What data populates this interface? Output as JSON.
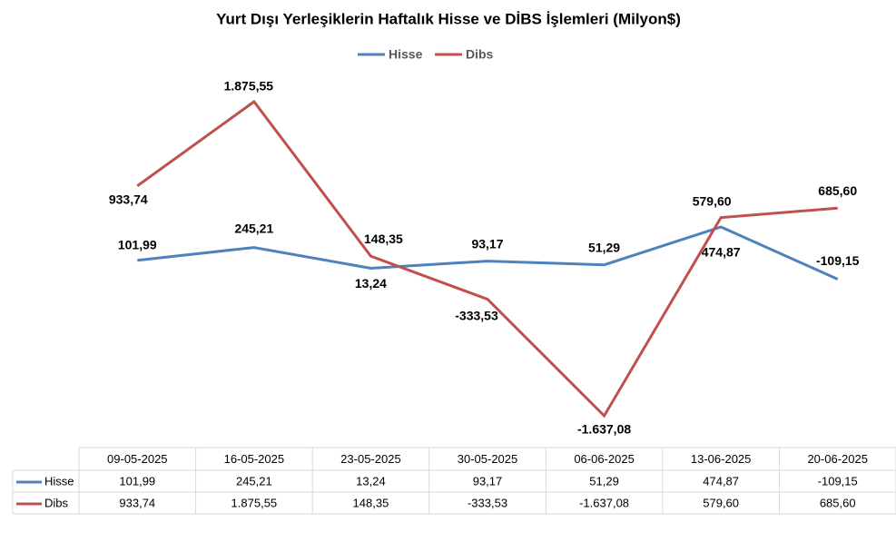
{
  "chart_data": {
    "type": "line",
    "title": "Yurt Dışı Yerleşiklerin Haftalık Hisse ve DİBS İşlemleri (Milyon$)",
    "categories": [
      "09-05-2025",
      "16-05-2025",
      "23-05-2025",
      "30-05-2025",
      "06-06-2025",
      "13-06-2025",
      "20-06-2025"
    ],
    "series": [
      {
        "name": "Hisse",
        "color": "#4f81bd",
        "values": [
          101.99,
          245.21,
          13.24,
          93.17,
          51.29,
          474.87,
          -109.15
        ],
        "value_labels": [
          "101,99",
          "245,21",
          "13,24",
          "93,17",
          "51,29",
          "474,87",
          "-109,15"
        ]
      },
      {
        "name": "Dibs",
        "color": "#c0504d",
        "values": [
          933.74,
          1875.55,
          148.35,
          -333.53,
          -1637.08,
          579.6,
          685.6
        ],
        "value_labels": [
          "933,74",
          "1.875,55",
          "148,35",
          "-333,53",
          "-1.637,08",
          "579,60",
          "685,60"
        ]
      }
    ],
    "legend": "top"
  }
}
